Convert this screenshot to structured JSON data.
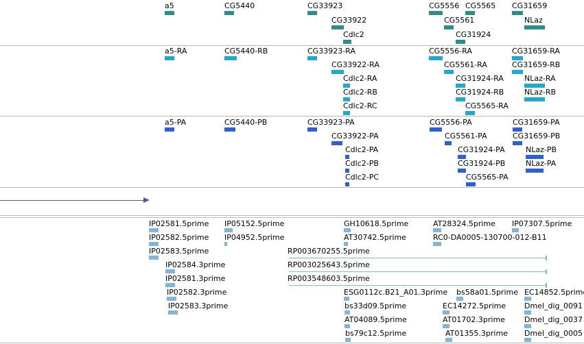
{
  "genes": [
    {
      "label": "a5",
      "glyph": "bar"
    },
    {
      "label": "CG5440",
      "glyph": "bar"
    },
    {
      "label": "CG33923",
      "glyph": "bar"
    },
    {
      "label": "CG33922",
      "glyph": "bar"
    },
    {
      "label": "Cdlc2",
      "glyph": "bar"
    },
    {
      "label": "CG5556",
      "glyph": "bar"
    },
    {
      "label": "CG5565",
      "glyph": "bar"
    },
    {
      "label": "CG5561",
      "glyph": "bar"
    },
    {
      "label": "CG31924",
      "glyph": "bar"
    },
    {
      "label": "CG31659",
      "glyph": "bar"
    },
    {
      "label": "NLaz",
      "glyph": "bar"
    }
  ],
  "transcripts": [
    "a5-RA",
    "CG5440-RB",
    "CG33923-RA",
    "CG33922-RA",
    "Cdlc2-RA",
    "Cdlc2-RB",
    "Cdlc2-RC",
    "CG5556-RA",
    "CG5561-RA",
    "CG31924-RA",
    "CG31924-RB",
    "CG5565-RA",
    "CG31659-RA",
    "CG31659-RB",
    "NLaz-RA",
    "NLaz-RB"
  ],
  "polypeptides": [
    "a5-PA",
    "CG5440-PB",
    "CG33923-PA",
    "CG33922-PA",
    "Cdlc2-PA",
    "Cdlc2-PB",
    "Cdlc2-PC",
    "CG5556-PA",
    "CG5561-PA",
    "CG31924-PA",
    "CG31924-PB",
    "CG5565-PA",
    "CG31659-PA",
    "CG31659-PB",
    "NLaz-PB",
    "NLaz-PA"
  ],
  "ests": [
    "IP02581.5prime",
    "IP05152.5prime",
    "GH10618.5prime",
    "AT28324.5prime",
    "IP07307.5prime",
    "IP02582.5prime",
    "IP04952.5prime",
    "AT30742.5prime",
    "RC0-DA0005-130700-012-B11",
    "IP02583.5prime",
    "RP003670255.5prime",
    "IP02584.3prime",
    "RP003025643.5prime",
    "IP02581.3prime",
    "RP003548603.5prime",
    "IP02582.3prime",
    "ESG0112c.B21_A01.3prime",
    "bs58a01.5prime",
    "EC14852.5prime",
    "IP02583.3prime",
    "bs33d09.5prime",
    "EC14272.5prime",
    "Dmel_dig_0091",
    "AT04089.5prime",
    "AT01702.3prime",
    "Dmel_dig_0037",
    "bs79c12.5prime",
    "AT01355.3prime",
    "Dmel_dig_0005"
  ],
  "colors": {
    "gene": "#2a8f8a",
    "transcript": "#1fa9cf",
    "polypeptide": "#2d5fd8",
    "est": "#7fb6dc",
    "scale": "#6a4aa0",
    "separator": "#b8b8b8"
  }
}
